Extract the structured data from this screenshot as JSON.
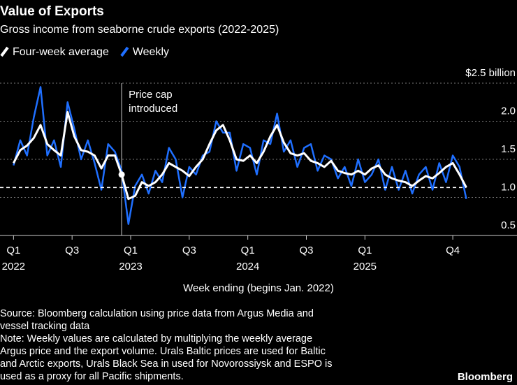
{
  "chart_data": {
    "type": "line",
    "title": "Value of Exports",
    "subtitle": "Gross income from seaborne crude exports (2022-2025)",
    "x_label": "Week ending (begins Jan. 2022)",
    "x": [
      0,
      3,
      6,
      9,
      12,
      15,
      18,
      21,
      24,
      27,
      30,
      33,
      36,
      39,
      42,
      45,
      48,
      51,
      54,
      57,
      60,
      63,
      66,
      69,
      72,
      75,
      78,
      81,
      84,
      87,
      90,
      93,
      96,
      99,
      102,
      105,
      108,
      111,
      114,
      117,
      120,
      123,
      126,
      129,
      132,
      135,
      138,
      141,
      144,
      147,
      150,
      153,
      156,
      159,
      162,
      165,
      168,
      171,
      174,
      177,
      180,
      183,
      186,
      189,
      192,
      195,
      198,
      201
    ],
    "series": [
      {
        "name": "Weekly",
        "color": "#1f6fff",
        "values": [
          1.42,
          1.75,
          1.55,
          2.05,
          2.45,
          1.55,
          1.75,
          1.4,
          2.25,
          1.9,
          1.5,
          1.75,
          1.45,
          1.1,
          1.7,
          1.6,
          1.35,
          0.65,
          1.15,
          1.3,
          1.05,
          1.35,
          1.2,
          1.65,
          1.5,
          1.0,
          1.4,
          1.3,
          1.55,
          1.6,
          2.0,
          1.85,
          1.85,
          1.35,
          1.7,
          1.65,
          1.3,
          1.75,
          1.7,
          2.1,
          1.6,
          1.75,
          1.4,
          1.65,
          1.7,
          1.35,
          1.55,
          1.5,
          1.25,
          1.4,
          1.15,
          1.5,
          1.2,
          1.3,
          1.5,
          1.1,
          1.4,
          1.1,
          1.35,
          1.05,
          1.3,
          1.4,
          1.1,
          1.45,
          1.2,
          1.55,
          1.4,
          0.98
        ]
      },
      {
        "name": "Four-week average",
        "color": "#ffffff",
        "values": [
          1.45,
          1.62,
          1.68,
          1.78,
          1.95,
          1.7,
          1.62,
          1.55,
          2.12,
          1.8,
          1.62,
          1.6,
          1.55,
          1.38,
          1.55,
          1.55,
          1.3,
          0.98,
          1.02,
          1.2,
          1.15,
          1.2,
          1.3,
          1.45,
          1.4,
          1.35,
          1.28,
          1.4,
          1.5,
          1.7,
          1.88,
          1.95,
          1.75,
          1.5,
          1.48,
          1.55,
          1.45,
          1.6,
          1.8,
          1.95,
          1.72,
          1.58,
          1.55,
          1.58,
          1.48,
          1.45,
          1.4,
          1.48,
          1.35,
          1.32,
          1.3,
          1.35,
          1.3,
          1.38,
          1.42,
          1.3,
          1.25,
          1.22,
          1.2,
          1.15,
          1.22,
          1.28,
          1.25,
          1.32,
          1.4,
          1.45,
          1.3,
          1.13
        ]
      }
    ],
    "legend_order": [
      1,
      0
    ],
    "xlim": [
      -6,
      208
    ],
    "xticks": [
      {
        "value": 0,
        "label": "Q1\n2022"
      },
      {
        "value": 26,
        "label": "Q3"
      },
      {
        "value": 52,
        "label": "Q1\n2023"
      },
      {
        "value": 78,
        "label": "Q3"
      },
      {
        "value": 104,
        "label": "Q1\n2024"
      },
      {
        "value": 130,
        "label": "Q3"
      },
      {
        "value": 156,
        "label": "Q1\n2025"
      },
      {
        "value": 195,
        "label": "Q4"
      }
    ],
    "ylim": [
      0.5,
      2.5
    ],
    "yticks": [
      0.5,
      {
        "value": 1.0,
        "label": "1.0"
      },
      1.5,
      {
        "value": 2.0,
        "label": "2.0"
      },
      {
        "value": 2.5,
        "label": "$2.5 billion"
      }
    ],
    "grid": true,
    "annotation": {
      "text": "Price cap\nintroduced",
      "x": 48
    },
    "source": [
      "Source: Bloomberg calculation using price data from Argus Media and",
      "vessel tracking data"
    ],
    "note": [
      "Note: Weekly values are calculated by multiplying the weekly average",
      "Argus price and the export volume. Urals Baltic prices are used for Baltic",
      "and Arctic exports, Urals Black Sea in used for Novorossiysk and ESPO is",
      "used as a proxy for all Pacific shipments."
    ],
    "brand": "Bloomberg"
  }
}
